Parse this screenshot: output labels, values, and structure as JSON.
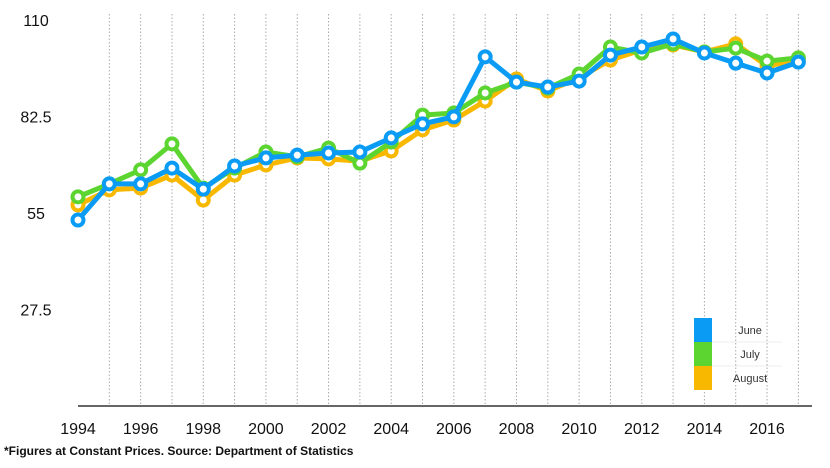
{
  "chart_data": {
    "type": "line",
    "x": [
      1994,
      1995,
      1996,
      1997,
      1998,
      1999,
      2000,
      2001,
      2002,
      2003,
      2004,
      2005,
      2006,
      2007,
      2008,
      2009,
      2010,
      2011,
      2012,
      2013,
      2014,
      2015,
      2016,
      2017
    ],
    "xticks": [
      "1994",
      "1996",
      "1998",
      "2000",
      "2002",
      "2004",
      "2006",
      "2008",
      "2010",
      "2012",
      "2014",
      "2016"
    ],
    "yticks": [
      "27.5",
      "55",
      "82.5",
      "110"
    ],
    "ylim": [
      0,
      110
    ],
    "xlim": [
      1994,
      2017
    ],
    "grid": "vertical dotted",
    "legend_position": "bottom-right",
    "series": [
      {
        "name": "June",
        "color": "#0a9cf5",
        "values": [
          53,
          63.3,
          63.3,
          67.8,
          61.8,
          68.4,
          70.7,
          71.5,
          72.1,
          72.4,
          76.4,
          80.4,
          82.4,
          99.5,
          92.3,
          90.9,
          92.6,
          100,
          102.3,
          104.6,
          100.6,
          97.7,
          94.9,
          98
        ]
      },
      {
        "name": "July",
        "color": "#5dd531",
        "values": [
          59.6,
          63.3,
          67.3,
          74.7,
          62.1,
          67.8,
          72.4,
          71,
          73.5,
          69.2,
          75.2,
          82.9,
          83.5,
          89.2,
          92.3,
          90.6,
          94.6,
          102.3,
          100.6,
          103.2,
          100.9,
          102,
          98.3,
          99.2
        ]
      },
      {
        "name": "August",
        "color": "#f8b800",
        "values": [
          57.3,
          61.6,
          62.1,
          65.8,
          58.7,
          65.8,
          68.7,
          70.7,
          70.4,
          69.8,
          72.7,
          78.7,
          81.5,
          86.9,
          93.2,
          89.8,
          93.5,
          98.6,
          101.5,
          102.9,
          100.9,
          103.2,
          96.9,
          98.6
        ]
      }
    ]
  },
  "footnote": "*Figures at Constant Prices. Source: Department of Statistics"
}
